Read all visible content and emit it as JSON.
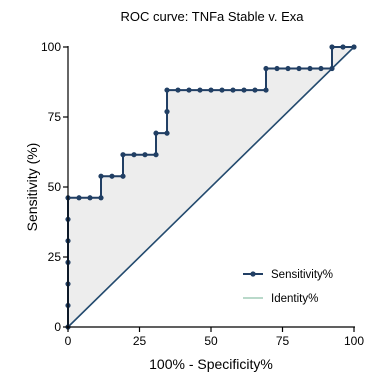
{
  "chart_data": {
    "type": "line",
    "title": "ROC curve: TNFa Stable v. Exa",
    "xlabel": "100% - Specificity%",
    "ylabel": "Sensitivity (%)",
    "xlim": [
      0,
      100
    ],
    "ylim": [
      0,
      100
    ],
    "xticks": [
      0,
      25,
      50,
      75,
      100
    ],
    "yticks": [
      0,
      25,
      50,
      75,
      100
    ],
    "grid": false,
    "legend_position": "bottom-right",
    "colors": {
      "sensitivity": "#213f64",
      "identity": "#234a6e",
      "identity_legend": "#8fc2aa",
      "fill": "#ededed",
      "axis": "#000000"
    },
    "series": [
      {
        "name": "Sensitivity%",
        "marker": "circle",
        "x": [
          0,
          0,
          0,
          0,
          0,
          0,
          0,
          3.85,
          7.69,
          11.54,
          11.54,
          15.38,
          19.23,
          19.23,
          23.08,
          26.92,
          30.77,
          30.77,
          34.62,
          34.62,
          34.62,
          38.46,
          42.31,
          46.15,
          50,
          53.85,
          57.69,
          61.54,
          65.38,
          69.23,
          69.23,
          73.08,
          76.92,
          80.77,
          84.62,
          88.46,
          92.31,
          92.31,
          96.15,
          100
        ],
        "y": [
          0,
          7.69,
          15.38,
          23.08,
          30.77,
          38.46,
          46.15,
          46.15,
          46.15,
          46.15,
          53.85,
          53.85,
          53.85,
          61.54,
          61.54,
          61.54,
          61.54,
          69.23,
          69.23,
          76.92,
          84.62,
          84.62,
          84.62,
          84.62,
          84.62,
          84.62,
          84.62,
          84.62,
          84.62,
          84.62,
          92.31,
          92.31,
          92.31,
          92.31,
          92.31,
          92.31,
          92.31,
          100,
          100,
          100
        ]
      },
      {
        "name": "Identity%",
        "marker": "none",
        "x": [
          0,
          100
        ],
        "y": [
          0,
          100
        ]
      }
    ]
  }
}
